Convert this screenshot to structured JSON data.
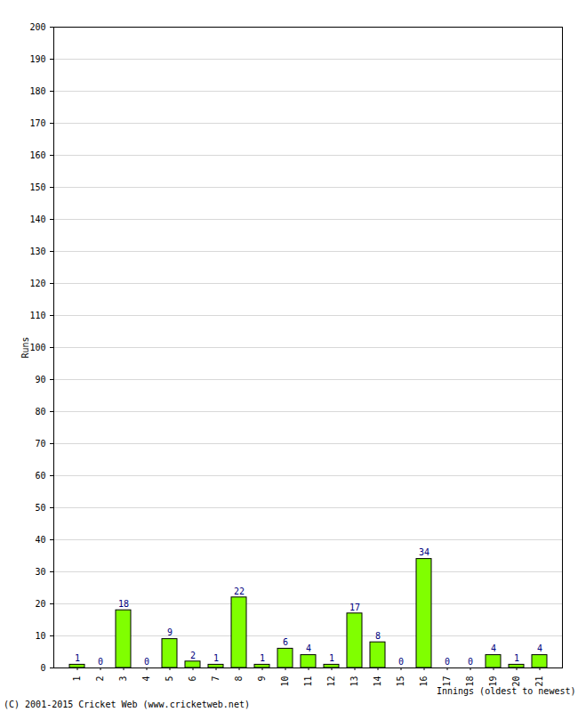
{
  "chart_data": {
    "type": "bar",
    "categories": [
      "1",
      "2",
      "3",
      "4",
      "5",
      "6",
      "7",
      "8",
      "9",
      "10",
      "11",
      "12",
      "13",
      "14",
      "15",
      "16",
      "17",
      "18",
      "19",
      "20",
      "21"
    ],
    "values": [
      1,
      0,
      18,
      0,
      9,
      2,
      1,
      22,
      1,
      6,
      4,
      1,
      17,
      8,
      0,
      34,
      0,
      0,
      4,
      1,
      4
    ],
    "color": "#80ff00",
    "x_label": "Innings (oldest to newest)",
    "y_label": "Runs",
    "caption": "(C) 2001-2015 Cricket Web (www.cricketweb.net)",
    "ylim": [
      0,
      200
    ],
    "yticks": [
      0,
      10,
      20,
      30,
      40,
      50,
      60,
      70,
      80,
      90,
      100,
      110,
      120,
      130,
      140,
      150,
      160,
      170,
      180,
      190,
      200
    ],
    "grid": true,
    "data_labels": true
  }
}
